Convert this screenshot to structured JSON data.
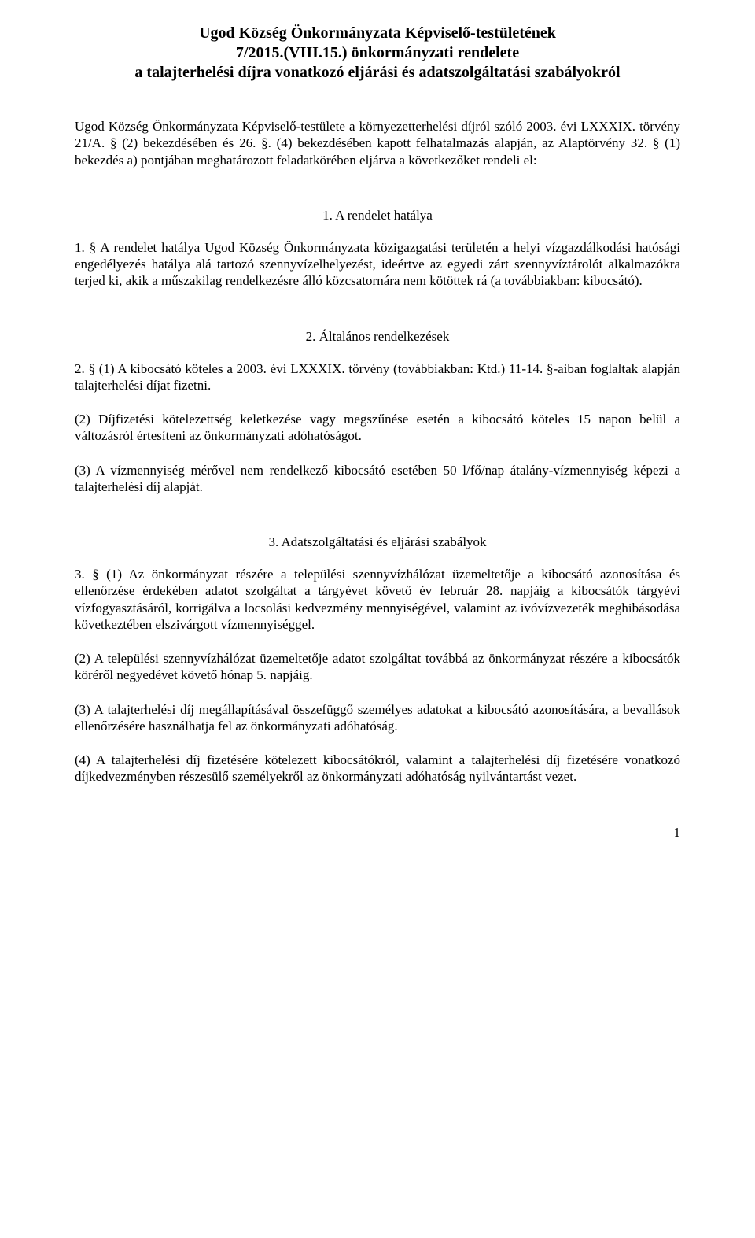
{
  "title": {
    "line1": "Ugod Község Önkormányzata Képviselő-testületének",
    "line2": "7/2015.(VIII.15.) önkormányzati rendelete",
    "line3": "a talajterhelési díjra vonatkozó eljárási és adatszolgáltatási szabályokról"
  },
  "preamble": "Ugod Község Önkormányzata Képviselő-testülete a környezetterhelési díjról szóló 2003. évi LXXXIX. törvény 21/A. § (2) bekezdésében és 26. §. (4) bekezdésében kapott felhatalmazás alapján, az Alaptörvény 32. § (1) bekezdés a) pontjában meghatározott feladatkörében eljárva a következőket rendeli el:",
  "section1": {
    "heading": "1. A rendelet hatálya",
    "p1": "1. § A rendelet hatálya Ugod Község Önkormányzata közigazgatási területén a helyi vízgazdálkodási hatósági engedélyezés hatálya alá tartozó szennyvízelhelyezést, ideértve az egyedi zárt szennyvíztárolót alkalmazókra terjed ki, akik a műszakilag rendelkezésre álló közcsatornára nem kötöttek rá (a továbbiakban: kibocsátó)."
  },
  "section2": {
    "heading": "2. Általános rendelkezések",
    "p1": "2. § (1) A kibocsátó köteles a 2003. évi LXXXIX. törvény (továbbiakban: Ktd.) 11-14. §-aiban foglaltak alapján talajterhelési díjat fizetni.",
    "p2": "(2) Díjfizetési kötelezettség keletkezése vagy megszűnése esetén a kibocsátó köteles 15 napon belül a változásról értesíteni az önkormányzati adóhatóságot.",
    "p3": "(3) A vízmennyiség mérővel nem rendelkező kibocsátó esetében 50 l/fő/nap átalány-vízmennyiség képezi a talajterhelési díj alapját."
  },
  "section3": {
    "heading": "3. Adatszolgáltatási és eljárási szabályok",
    "p1": "3. § (1) Az önkormányzat részére a települési szennyvízhálózat üzemeltetője a kibocsátó azonosítása és ellenőrzése érdekében adatot szolgáltat a tárgyévet követő év február 28. napjáig a kibocsátók tárgyévi vízfogyasztásáról, korrigálva a locsolási kedvezmény mennyiségével, valamint az ivóvízvezeték meghibásodása következtében elszivárgott vízmennyiséggel.",
    "p2": "(2) A települési szennyvízhálózat üzemeltetője adatot szolgáltat továbbá az önkormányzat részére a kibocsátók köréről negyedévet követő hónap 5. napjáig.",
    "p3": "(3) A talajterhelési díj megállapításával összefüggő személyes adatokat a kibocsátó azonosítására, a bevallások ellenőrzésére használhatja fel az önkormányzati adóhatóság.",
    "p4": "(4) A talajterhelési díj fizetésére kötelezett kibocsátókról, valamint a talajterhelési díj fizetésére vonatkozó díjkedvezményben részesülő személyekről az önkormányzati adóhatóság nyilvántartást vezet."
  },
  "page_number": "1"
}
